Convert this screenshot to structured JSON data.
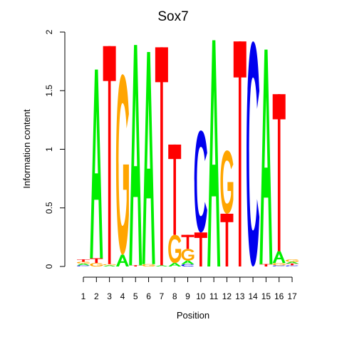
{
  "chart_data": {
    "type": "sequence-logo",
    "title": "Sox7",
    "xlabel": "Position",
    "ylabel": "Information content",
    "ylim": [
      0,
      2
    ],
    "y_ticks": [
      "0",
      "0.5",
      "1",
      "1.5",
      "2"
    ],
    "x_ticks": [
      "1",
      "2",
      "3",
      "4",
      "5",
      "6",
      "7",
      "8",
      "9",
      "10",
      "11",
      "12",
      "13",
      "14",
      "15",
      "16",
      "17"
    ],
    "colors": {
      "A": "#00ee00",
      "C": "#0000ee",
      "G": "#ffa500",
      "T": "#ff0000"
    },
    "positions": [
      {
        "pos": 1,
        "letters": [
          {
            "l": "C",
            "v": 0.01
          },
          {
            "l": "A",
            "v": 0.015
          },
          {
            "l": "G",
            "v": 0.015
          },
          {
            "l": "T",
            "v": 0.02
          }
        ]
      },
      {
        "pos": 2,
        "letters": [
          {
            "l": "G",
            "v": 0.03
          },
          {
            "l": "T",
            "v": 0.04
          },
          {
            "l": "A",
            "v": 1.61
          }
        ]
      },
      {
        "pos": 3,
        "letters": [
          {
            "l": "A",
            "v": 0.01
          },
          {
            "l": "G",
            "v": 0.01
          },
          {
            "l": "T",
            "v": 1.86
          }
        ]
      },
      {
        "pos": 4,
        "letters": [
          {
            "l": "A",
            "v": 0.1
          },
          {
            "l": "G",
            "v": 1.54
          }
        ]
      },
      {
        "pos": 5,
        "letters": [
          {
            "l": "T",
            "v": 0.01
          },
          {
            "l": "A",
            "v": 1.88
          }
        ]
      },
      {
        "pos": 6,
        "letters": [
          {
            "l": "G",
            "v": 0.02
          },
          {
            "l": "A",
            "v": 1.81
          }
        ]
      },
      {
        "pos": 7,
        "letters": [
          {
            "l": "A",
            "v": 0.01
          },
          {
            "l": "T",
            "v": 1.86
          }
        ]
      },
      {
        "pos": 8,
        "letters": [
          {
            "l": "A",
            "v": 0.03
          },
          {
            "l": "G",
            "v": 0.24
          },
          {
            "l": "T",
            "v": 0.77
          }
        ]
      },
      {
        "pos": 9,
        "letters": [
          {
            "l": "C",
            "v": 0.02
          },
          {
            "l": "A",
            "v": 0.03
          },
          {
            "l": "G",
            "v": 0.1
          },
          {
            "l": "T",
            "v": 0.12
          }
        ]
      },
      {
        "pos": 10,
        "letters": [
          {
            "l": "T",
            "v": 0.29
          },
          {
            "l": "C",
            "v": 0.87
          }
        ]
      },
      {
        "pos": 11,
        "letters": [
          {
            "l": "A",
            "v": 1.93
          }
        ]
      },
      {
        "pos": 12,
        "letters": [
          {
            "l": "T",
            "v": 0.45
          },
          {
            "l": "G",
            "v": 0.54
          }
        ]
      },
      {
        "pos": 13,
        "letters": [
          {
            "l": "T",
            "v": 1.92
          }
        ]
      },
      {
        "pos": 14,
        "letters": [
          {
            "l": "C",
            "v": 1.92
          }
        ]
      },
      {
        "pos": 15,
        "letters": [
          {
            "l": "T",
            "v": 0.02
          },
          {
            "l": "A",
            "v": 1.83
          }
        ]
      },
      {
        "pos": 16,
        "letters": [
          {
            "l": "C",
            "v": 0.01
          },
          {
            "l": "G",
            "v": 0.02
          },
          {
            "l": "A",
            "v": 0.1
          },
          {
            "l": "T",
            "v": 1.34
          }
        ]
      },
      {
        "pos": 17,
        "letters": [
          {
            "l": "C",
            "v": 0.01
          },
          {
            "l": "T",
            "v": 0.015
          },
          {
            "l": "A",
            "v": 0.015
          },
          {
            "l": "G",
            "v": 0.02
          }
        ]
      }
    ]
  }
}
